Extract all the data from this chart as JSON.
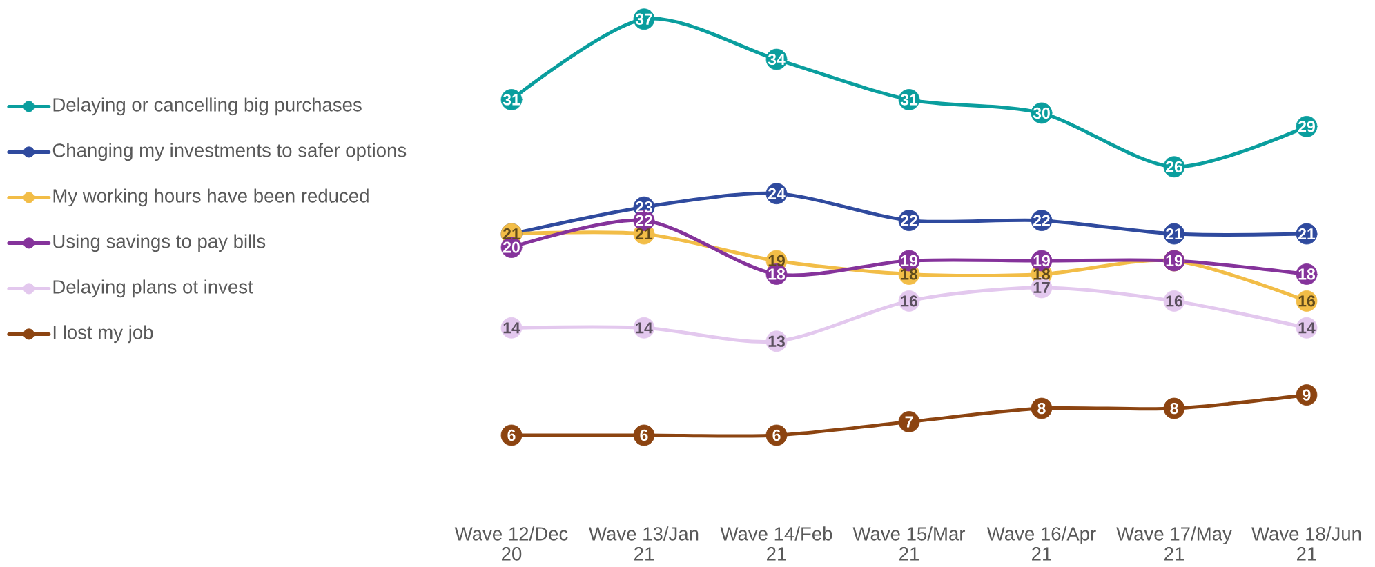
{
  "chart_data": {
    "type": "line",
    "categories": [
      "Wave 12/Dec 20",
      "Wave 13/Jan 21",
      "Wave 14/Feb 21",
      "Wave 15/Mar 21",
      "Wave 16/Apr 21",
      "Wave 17/May 21",
      "Wave 18/Jun 21"
    ],
    "series": [
      {
        "name": "Delaying or cancelling big purchases",
        "color": "#0a9e9e",
        "values": [
          31,
          37,
          34,
          31,
          30,
          26,
          29
        ],
        "value_labels": [
          "31",
          "37",
          "34",
          "31",
          "30",
          "26",
          "29"
        ]
      },
      {
        "name": "Changing my investments to safer options",
        "color": "#2f4a9e",
        "values": [
          21,
          23,
          24,
          22,
          22,
          21,
          21
        ],
        "value_labels": [
          null,
          "23",
          "24",
          "22",
          "22",
          "21",
          "21"
        ]
      },
      {
        "name": "My working hours have been reduced",
        "color": "#f2bd47",
        "values": [
          21,
          21,
          19,
          18,
          18,
          19,
          16
        ],
        "value_labels": [
          "21",
          "21",
          "19",
          "18",
          "18",
          null,
          "16"
        ]
      },
      {
        "name": "Using savings to pay bills",
        "color": "#85339b",
        "values": [
          20,
          22,
          18,
          19,
          19,
          19,
          18
        ],
        "value_labels": [
          "20",
          "22",
          "18",
          "19",
          "19",
          "19",
          "18"
        ]
      },
      {
        "name": "Delaying plans ot invest",
        "color": "#e3c8ee",
        "values": [
          14,
          14,
          13,
          16,
          17,
          16,
          14
        ],
        "value_labels": [
          "14",
          "14",
          "13",
          "16",
          "17",
          "16",
          "14"
        ]
      },
      {
        "name": "I lost my job",
        "color": "#8c4411",
        "values": [
          6,
          6,
          6,
          7,
          8,
          8,
          9
        ],
        "value_labels": [
          "6",
          "6",
          "6",
          "7",
          "8",
          "8",
          "9"
        ]
      }
    ],
    "legend": "left",
    "marker": "circle",
    "line_style": "solid",
    "tick_labels": "x"
  }
}
